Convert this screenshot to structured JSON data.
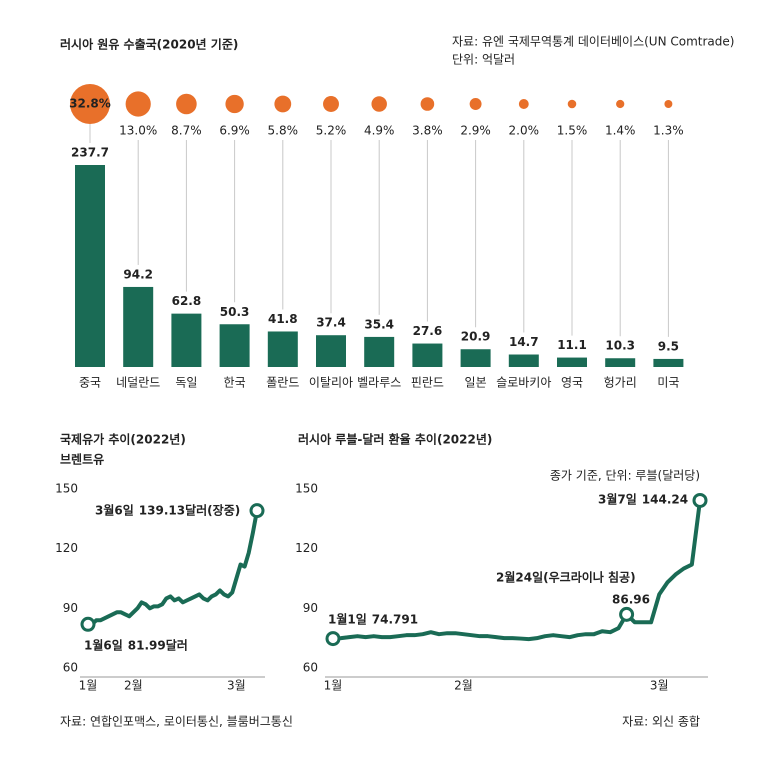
{
  "chart_data": [
    {
      "type": "bar",
      "title": "러시아 원유 수출국(2020년 기준)",
      "source": "자료: 유엔 국제무역통계 데이터베이스(UN Comtrade)",
      "unit": "단위: 억달러",
      "categories": [
        "중국",
        "네덜란드",
        "독일",
        "한국",
        "폴란드",
        "이탈리아",
        "벨라루스",
        "핀란드",
        "일본",
        "슬로바키아",
        "영국",
        "헝가리",
        "미국"
      ],
      "values": [
        237.7,
        94.2,
        62.8,
        50.3,
        41.8,
        37.4,
        35.4,
        27.6,
        20.9,
        14.7,
        11.1,
        10.3,
        9.5
      ],
      "color": "#1a6b55",
      "shares": [
        32.8,
        13.0,
        8.7,
        6.9,
        5.8,
        5.2,
        4.9,
        3.8,
        2.9,
        2.0,
        1.5,
        1.4,
        1.3
      ],
      "share_labels": [
        "32.8%",
        "13.0%",
        "8.7%",
        "6.9%",
        "5.8%",
        "5.2%",
        "4.9%",
        "3.8%",
        "2.9%",
        "2.0%",
        "1.5%",
        "1.4%",
        "1.3%"
      ],
      "share_color": "#e8702a"
    },
    {
      "type": "line",
      "title": "국제유가 추이(2022년)",
      "subtitle": "브렌트유",
      "source": "자료: 연합인포맥스, 로이터통신, 블룸버그통신",
      "x": [
        0,
        1,
        2,
        3,
        4,
        5,
        6,
        7,
        8,
        9,
        10,
        11,
        12,
        13,
        14,
        15,
        16,
        17,
        18,
        19,
        20,
        21,
        22,
        23,
        24,
        25,
        26,
        27,
        28,
        29,
        30,
        31,
        32,
        33,
        34,
        35,
        36,
        37,
        38,
        39,
        40,
        41
      ],
      "values": [
        81.99,
        82,
        84,
        84,
        85,
        86,
        87,
        88,
        88,
        87,
        86,
        88,
        90,
        93,
        92,
        90,
        91,
        91,
        92,
        95,
        96,
        94,
        95,
        93,
        94,
        95,
        96,
        97,
        95,
        94,
        96,
        97,
        99,
        97,
        96,
        98,
        105,
        112,
        111,
        118,
        128,
        139.13
      ],
      "color": "#1a6b55",
      "xlim": [
        0,
        41
      ],
      "xticks": [
        {
          "value": 0,
          "label": "1월"
        },
        {
          "value": 11,
          "label": "2월"
        },
        {
          "value": 36,
          "label": "3월"
        }
      ],
      "ylim": [
        60,
        150
      ],
      "yticks": [
        60,
        90,
        120,
        150
      ],
      "grid": false,
      "annotations": [
        {
          "date": "1월6일",
          "value": 81.99,
          "value_label": "81.99달러"
        },
        {
          "date": "3월6일",
          "value": 139.13,
          "value_label": "139.13달러(장중)"
        }
      ]
    },
    {
      "type": "line",
      "title": "러시아 루블-달러 환율 추이(2022년)",
      "note": "종가 기준, 단위: 루블(달러당)",
      "source": "자료: 외신 종합",
      "x": [
        0,
        1,
        2,
        3,
        4,
        5,
        6,
        7,
        8,
        9,
        10,
        11,
        12,
        13,
        14,
        15,
        16,
        17,
        18,
        19,
        20,
        21,
        22,
        23,
        24,
        25,
        26,
        27,
        28,
        29,
        30,
        31,
        32,
        33,
        34,
        35,
        36,
        37,
        38,
        39,
        40,
        41,
        42,
        43,
        44,
        45
      ],
      "values": [
        74.791,
        75,
        75.5,
        76,
        75.5,
        76,
        75.5,
        75.5,
        76,
        76.5,
        76.5,
        77,
        78,
        77,
        77.5,
        77.5,
        77,
        76.5,
        76,
        76,
        75.5,
        75,
        75,
        74.8,
        74.5,
        75,
        76,
        76.5,
        76,
        75.5,
        76.5,
        77,
        77,
        78.5,
        78,
        80,
        86.96,
        83,
        83,
        83,
        97,
        103,
        107,
        110,
        112,
        144.24
      ],
      "color": "#1a6b55",
      "xlim": [
        0,
        45
      ],
      "xticks": [
        {
          "value": 0,
          "label": "1월"
        },
        {
          "value": 16,
          "label": "2월"
        },
        {
          "value": 40,
          "label": "3월"
        }
      ],
      "ylim": [
        60,
        150
      ],
      "yticks": [
        60,
        90,
        120,
        150
      ],
      "grid": false,
      "annotations": [
        {
          "date": "1월1일",
          "value": 74.791
        },
        {
          "date": "2월24일(우크라이나 침공)",
          "value": 86.96
        },
        {
          "date": "3월7일",
          "value": 144.24
        }
      ]
    }
  ]
}
